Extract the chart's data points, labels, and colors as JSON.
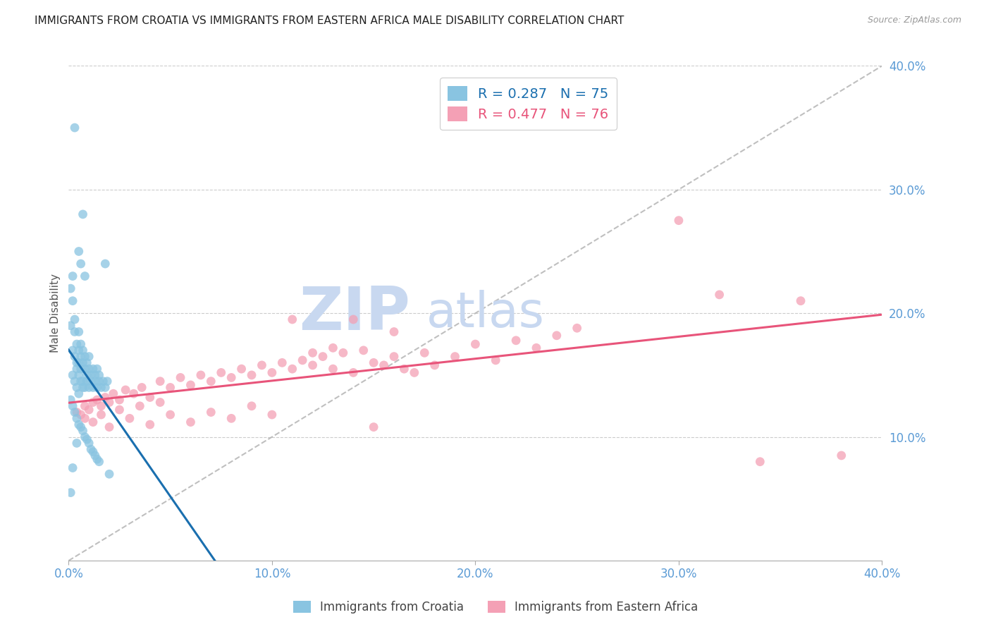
{
  "title": "IMMIGRANTS FROM CROATIA VS IMMIGRANTS FROM EASTERN AFRICA MALE DISABILITY CORRELATION CHART",
  "source": "Source: ZipAtlas.com",
  "xlabel_croatia": "Immigrants from Croatia",
  "xlabel_eastern_africa": "Immigrants from Eastern Africa",
  "ylabel": "Male Disability",
  "legend_blue_r": "R = 0.287",
  "legend_blue_n": "N = 75",
  "legend_pink_r": "R = 0.477",
  "legend_pink_n": "N = 76",
  "xlim": [
    0.0,
    0.4
  ],
  "ylim": [
    0.0,
    0.4
  ],
  "yticks": [
    0.1,
    0.2,
    0.3,
    0.4
  ],
  "xticks": [
    0.0,
    0.1,
    0.2,
    0.3,
    0.4
  ],
  "color_blue": "#89c4e1",
  "color_pink": "#f4a0b5",
  "color_blue_line": "#1a6faf",
  "color_pink_line": "#e8547a",
  "color_diag": "#b0b0b0",
  "watermark": "ZIPatlas",
  "watermark_color": "#c8d8f0",
  "title_color": "#222222",
  "axis_color": "#5b9bd5",
  "background": "#ffffff",
  "blue_points_x": [
    0.001,
    0.001,
    0.002,
    0.002,
    0.002,
    0.002,
    0.003,
    0.003,
    0.003,
    0.003,
    0.004,
    0.004,
    0.004,
    0.004,
    0.005,
    0.005,
    0.005,
    0.005,
    0.005,
    0.006,
    0.006,
    0.006,
    0.006,
    0.007,
    0.007,
    0.007,
    0.007,
    0.008,
    0.008,
    0.008,
    0.009,
    0.009,
    0.009,
    0.01,
    0.01,
    0.01,
    0.011,
    0.011,
    0.012,
    0.012,
    0.013,
    0.013,
    0.014,
    0.014,
    0.015,
    0.015,
    0.016,
    0.017,
    0.018,
    0.019,
    0.001,
    0.002,
    0.003,
    0.004,
    0.005,
    0.006,
    0.007,
    0.008,
    0.009,
    0.01,
    0.011,
    0.012,
    0.013,
    0.014,
    0.015,
    0.005,
    0.006,
    0.007,
    0.008,
    0.003,
    0.004,
    0.002,
    0.018,
    0.001,
    0.02
  ],
  "blue_points_y": [
    0.22,
    0.19,
    0.21,
    0.17,
    0.15,
    0.23,
    0.165,
    0.185,
    0.145,
    0.195,
    0.175,
    0.16,
    0.14,
    0.155,
    0.17,
    0.15,
    0.135,
    0.185,
    0.16,
    0.145,
    0.175,
    0.155,
    0.165,
    0.14,
    0.16,
    0.145,
    0.17,
    0.155,
    0.14,
    0.165,
    0.15,
    0.16,
    0.145,
    0.155,
    0.14,
    0.165,
    0.15,
    0.145,
    0.14,
    0.155,
    0.15,
    0.145,
    0.155,
    0.14,
    0.145,
    0.15,
    0.14,
    0.145,
    0.14,
    0.145,
    0.13,
    0.125,
    0.12,
    0.115,
    0.11,
    0.108,
    0.105,
    0.1,
    0.098,
    0.095,
    0.09,
    0.088,
    0.085,
    0.082,
    0.08,
    0.25,
    0.24,
    0.28,
    0.23,
    0.35,
    0.095,
    0.075,
    0.24,
    0.055,
    0.07
  ],
  "pink_points_x": [
    0.004,
    0.006,
    0.008,
    0.01,
    0.012,
    0.014,
    0.016,
    0.018,
    0.02,
    0.022,
    0.025,
    0.028,
    0.032,
    0.036,
    0.04,
    0.045,
    0.05,
    0.055,
    0.06,
    0.065,
    0.07,
    0.075,
    0.08,
    0.085,
    0.09,
    0.095,
    0.1,
    0.105,
    0.11,
    0.115,
    0.12,
    0.125,
    0.13,
    0.135,
    0.14,
    0.145,
    0.15,
    0.155,
    0.16,
    0.165,
    0.17,
    0.175,
    0.18,
    0.19,
    0.2,
    0.21,
    0.22,
    0.23,
    0.24,
    0.25,
    0.008,
    0.012,
    0.016,
    0.02,
    0.025,
    0.03,
    0.035,
    0.04,
    0.045,
    0.05,
    0.06,
    0.07,
    0.08,
    0.09,
    0.1,
    0.11,
    0.12,
    0.13,
    0.14,
    0.15,
    0.16,
    0.32,
    0.34,
    0.36,
    0.38,
    0.3
  ],
  "pink_points_y": [
    0.12,
    0.118,
    0.125,
    0.122,
    0.128,
    0.13,
    0.125,
    0.132,
    0.128,
    0.135,
    0.13,
    0.138,
    0.135,
    0.14,
    0.132,
    0.145,
    0.14,
    0.148,
    0.142,
    0.15,
    0.145,
    0.152,
    0.148,
    0.155,
    0.15,
    0.158,
    0.152,
    0.16,
    0.155,
    0.162,
    0.158,
    0.165,
    0.155,
    0.168,
    0.152,
    0.17,
    0.16,
    0.158,
    0.165,
    0.155,
    0.152,
    0.168,
    0.158,
    0.165,
    0.175,
    0.162,
    0.178,
    0.172,
    0.182,
    0.188,
    0.115,
    0.112,
    0.118,
    0.108,
    0.122,
    0.115,
    0.125,
    0.11,
    0.128,
    0.118,
    0.112,
    0.12,
    0.115,
    0.125,
    0.118,
    0.195,
    0.168,
    0.172,
    0.195,
    0.108,
    0.185,
    0.215,
    0.08,
    0.21,
    0.085,
    0.275
  ]
}
